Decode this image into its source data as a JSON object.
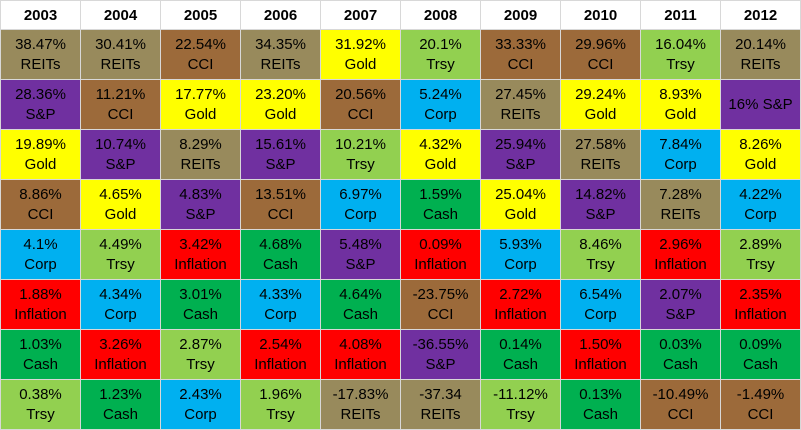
{
  "table": {
    "header": [
      "2003",
      "2004",
      "2005",
      "2006",
      "2007",
      "2008",
      "2009",
      "2010",
      "2011",
      "2012"
    ],
    "asset_colors": {
      "REITs": "#988a5c",
      "CCI": "#9c6a3a",
      "Gold": "#ffff00",
      "Trsy": "#92d050",
      "S&P": "#7030a0",
      "Corp": "#00b0f0",
      "Cash": "#00b050",
      "Inflation": "#ff0000"
    },
    "rows": [
      [
        [
          "38.47%",
          "REITs"
        ],
        [
          "30.41%",
          "REITs"
        ],
        [
          "22.54%",
          "CCI"
        ],
        [
          "34.35%",
          "REITs"
        ],
        [
          "31.92%",
          "Gold"
        ],
        [
          "20.1%",
          "Trsy"
        ],
        [
          "33.33%",
          "CCI"
        ],
        [
          "29.96%",
          "CCI"
        ],
        [
          "16.04%",
          "Trsy"
        ],
        [
          "20.14%",
          "REITs"
        ]
      ],
      [
        [
          "28.36%",
          "S&P"
        ],
        [
          "11.21%",
          "CCI"
        ],
        [
          "17.77%",
          "Gold"
        ],
        [
          "23.20%",
          "Gold"
        ],
        [
          "20.56%",
          "CCI"
        ],
        [
          "5.24%",
          "Corp"
        ],
        [
          "27.45%",
          "REITs"
        ],
        [
          "29.24%",
          "Gold"
        ],
        [
          "8.93%",
          "Gold"
        ],
        {
          "text": "16% S&P",
          "color": "#7030a0"
        }
      ],
      [
        [
          "19.89%",
          "Gold"
        ],
        [
          "10.74%",
          "S&P"
        ],
        [
          "8.29%",
          "REITs"
        ],
        [
          "15.61%",
          "S&P"
        ],
        [
          "10.21%",
          "Trsy"
        ],
        [
          "4.32%",
          "Gold"
        ],
        [
          "25.94%",
          "S&P"
        ],
        [
          "27.58%",
          "REITs"
        ],
        [
          "7.84%",
          "Corp"
        ],
        [
          "8.26%",
          "Gold"
        ]
      ],
      [
        [
          "8.86%",
          "CCI"
        ],
        [
          "4.65%",
          "Gold"
        ],
        [
          "4.83%",
          "S&P"
        ],
        [
          "13.51%",
          "CCI"
        ],
        [
          "6.97%",
          "Corp"
        ],
        [
          "1.59%",
          "Cash"
        ],
        [
          "25.04%",
          "Gold"
        ],
        [
          "14.82%",
          "S&P"
        ],
        [
          "7.28%",
          "REITs"
        ],
        [
          "4.22%",
          "Corp"
        ]
      ],
      [
        [
          "4.1%",
          "Corp"
        ],
        [
          "4.49%",
          "Trsy"
        ],
        [
          "3.42%",
          "Inflation"
        ],
        [
          "4.68%",
          "Cash"
        ],
        [
          "5.48%",
          "S&P"
        ],
        [
          "0.09%",
          "Inflation"
        ],
        [
          "5.93%",
          "Corp"
        ],
        [
          "8.46%",
          "Trsy"
        ],
        [
          "2.96%",
          "Inflation"
        ],
        [
          "2.89%",
          "Trsy"
        ]
      ],
      [
        [
          "1.88%",
          "Inflation"
        ],
        [
          "4.34%",
          "Corp"
        ],
        [
          "3.01%",
          "Cash"
        ],
        [
          "4.33%",
          "Corp"
        ],
        [
          "4.64%",
          "Cash"
        ],
        [
          "-23.75%",
          "CCI"
        ],
        [
          "2.72%",
          "Inflation"
        ],
        [
          "6.54%",
          "Corp"
        ],
        [
          "2.07%",
          "S&P"
        ],
        [
          "2.35%",
          "Inflation"
        ]
      ],
      [
        [
          "1.03%",
          "Cash"
        ],
        [
          "3.26%",
          "Inflation"
        ],
        [
          "2.87%",
          "Trsy"
        ],
        [
          "2.54%",
          "Inflation"
        ],
        [
          "4.08%",
          "Inflation"
        ],
        [
          "-36.55%",
          "S&P"
        ],
        [
          "0.14%",
          "Cash"
        ],
        [
          "1.50%",
          "Inflation"
        ],
        [
          "0.03%",
          "Cash"
        ],
        [
          "0.09%",
          "Cash"
        ]
      ],
      [
        [
          "0.38%",
          "Trsy"
        ],
        [
          "1.23%",
          "Cash"
        ],
        [
          "2.43%",
          "Corp"
        ],
        [
          "1.96%",
          "Trsy"
        ],
        [
          "-17.83%",
          "REITs"
        ],
        [
          "-37.34",
          "REITs"
        ],
        [
          "-11.12%",
          "Trsy"
        ],
        [
          "0.13%",
          "Cash"
        ],
        [
          "-10.49%",
          "CCI"
        ],
        [
          "-1.49%",
          "CCI"
        ]
      ]
    ]
  }
}
